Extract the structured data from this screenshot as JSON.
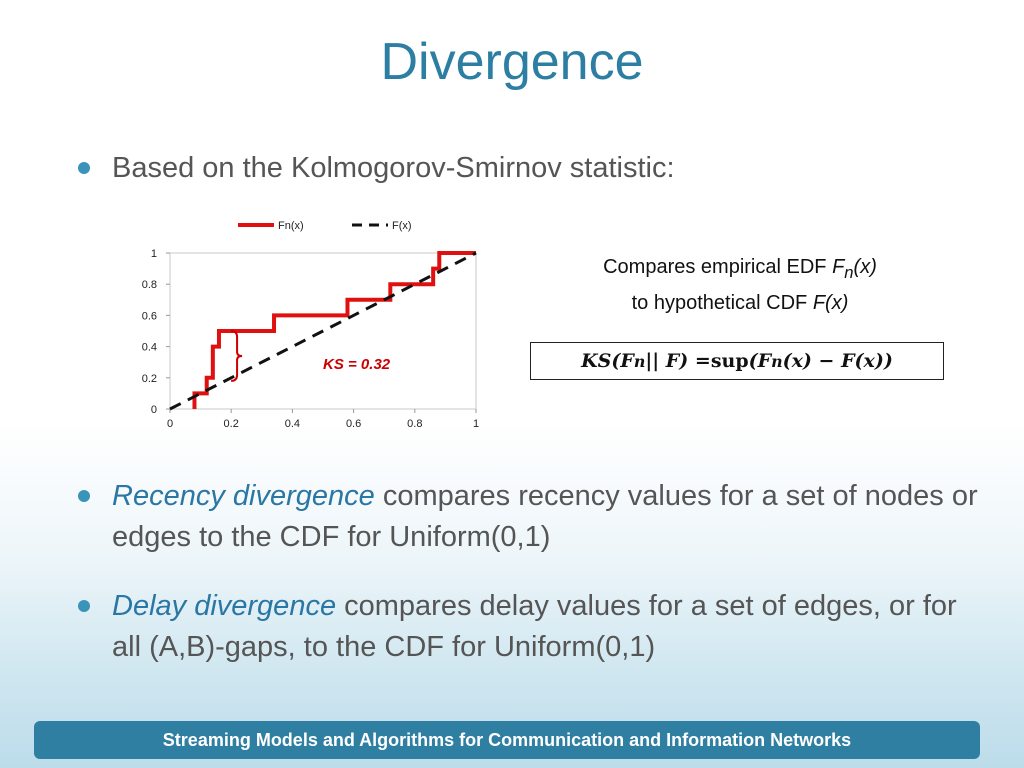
{
  "title": "Divergence",
  "bullets": {
    "b1": "Based on the Kolmogorov-Smirnov statistic:",
    "b2_em": "Recency divergence",
    "b2_rest": " compares recency values for a set of nodes or edges to the CDF for Uniform(0,1)",
    "b3_em": "Delay divergence",
    "b3_rest": " compares delay values for a set of edges, or for all (A,B)-gaps, to the CDF for Uniform(0,1)"
  },
  "compare": {
    "line1_prefix": "Compares empirical EDF ",
    "line1_var": "F",
    "line1_sub": "n",
    "line1_arg": "(x)",
    "line2_prefix": "to hypothetical CDF ",
    "line2_var": "F(x)"
  },
  "formula": {
    "text_left": "KS(F",
    "sub": "n",
    "middle": " || F) = ",
    "sup": "sup",
    "right_open": " (F",
    "right_sub": "n",
    "right_close": "(x) − F(x))"
  },
  "footer": "Streaming Models and Algorithms for Communication and Information Networks",
  "chart_data": {
    "type": "line",
    "title": "",
    "xlabel": "",
    "ylabel": "",
    "xlim": [
      0,
      1
    ],
    "ylim": [
      0,
      1
    ],
    "x_ticks": [
      "0",
      "0.2",
      "0.4",
      "0.6",
      "0.8",
      "1"
    ],
    "y_ticks": [
      "0",
      "0.2",
      "0.4",
      "0.6",
      "0.8",
      "1"
    ],
    "legend": {
      "placement": "top",
      "entries": [
        "Fn(x)",
        "F(x)"
      ]
    },
    "series": [
      {
        "name": "Fn(x)",
        "style": "step",
        "color": "#e01010",
        "x": [
          0.08,
          0.08,
          0.12,
          0.12,
          0.14,
          0.14,
          0.16,
          0.16,
          0.34,
          0.34,
          0.58,
          0.58,
          0.72,
          0.72,
          0.86,
          0.86,
          0.88,
          0.88,
          1.0
        ],
        "y": [
          0.0,
          0.1,
          0.1,
          0.2,
          0.2,
          0.4,
          0.4,
          0.5,
          0.5,
          0.6,
          0.6,
          0.7,
          0.7,
          0.8,
          0.8,
          0.9,
          0.9,
          1.0,
          1.0
        ]
      },
      {
        "name": "F(x)",
        "style": "dashed",
        "color": "#111111",
        "x": [
          0,
          1
        ],
        "y": [
          0,
          1
        ]
      }
    ],
    "annotation": {
      "text": "KS = 0.32",
      "x": 0.18,
      "y_from": 0.18,
      "y_to": 0.5,
      "color": "#cc0000"
    }
  }
}
